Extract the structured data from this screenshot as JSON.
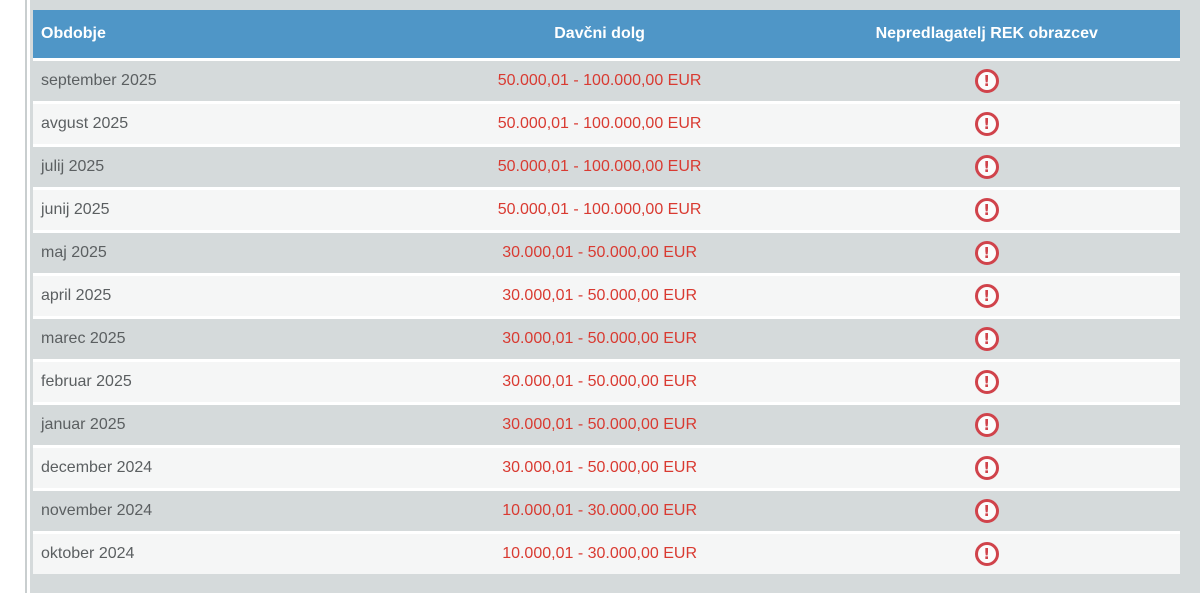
{
  "page": {
    "background": "#ffffff",
    "panel_background": "#d5dadb",
    "divider_color": "#c9cecf"
  },
  "colors": {
    "header_blue": "#4f96c7",
    "header_text": "#ffffff",
    "row_light": "#f5f6f6",
    "row_dark": "#d5dadb",
    "row_separator": "#ffffff",
    "period_text": "#5b5f61",
    "debt_text_red": "#d93a31",
    "alert_icon_red": "#d0434b"
  },
  "icons": {
    "alert": {
      "name": "alert-icon",
      "glyph": "!"
    }
  },
  "table": {
    "headers": [
      {
        "label": "Obdobje"
      },
      {
        "label": "Davčni dolg"
      },
      {
        "label": "Nepredlagatelj REK obrazcev"
      }
    ],
    "rows": [
      {
        "period": "september 2025",
        "debt": "50.000,01 - 100.000,00 EUR",
        "alert": true
      },
      {
        "period": "avgust 2025",
        "debt": "50.000,01 - 100.000,00 EUR",
        "alert": true
      },
      {
        "period": "julij 2025",
        "debt": "50.000,01 - 100.000,00 EUR",
        "alert": true
      },
      {
        "period": "junij 2025",
        "debt": "50.000,01 - 100.000,00 EUR",
        "alert": true
      },
      {
        "period": "maj 2025",
        "debt": "30.000,01 - 50.000,00 EUR",
        "alert": true
      },
      {
        "period": "april 2025",
        "debt": "30.000,01 - 50.000,00 EUR",
        "alert": true
      },
      {
        "period": "marec 2025",
        "debt": "30.000,01 - 50.000,00 EUR",
        "alert": true
      },
      {
        "period": "februar 2025",
        "debt": "30.000,01 - 50.000,00 EUR",
        "alert": true
      },
      {
        "period": "januar 2025",
        "debt": "30.000,01 - 50.000,00 EUR",
        "alert": true
      },
      {
        "period": "december 2024",
        "debt": "30.000,01 - 50.000,00 EUR",
        "alert": true
      },
      {
        "period": "november 2024",
        "debt": "10.000,01 - 30.000,00 EUR",
        "alert": true
      },
      {
        "period": "oktober 2024",
        "debt": "10.000,01 - 30.000,00 EUR",
        "alert": true
      }
    ]
  }
}
